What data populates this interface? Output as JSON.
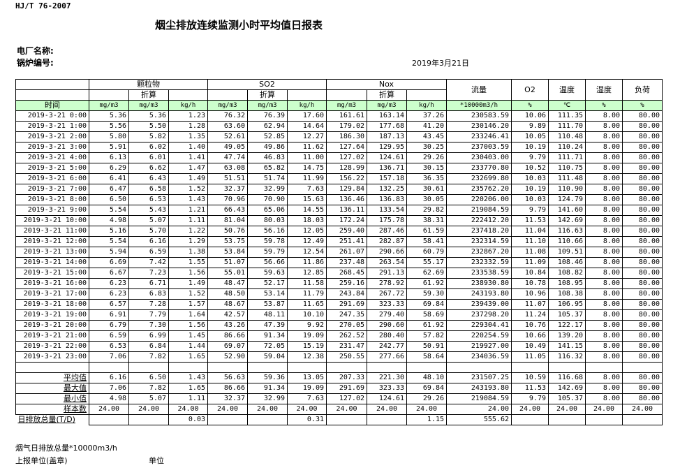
{
  "header": {
    "standard": "HJ/T  76-2007",
    "title": "烟尘排放连续监测小时平均值日报表",
    "plant_label": "电厂名称:",
    "boiler_label": "锅炉编号:",
    "date": "2019年3月21日"
  },
  "groups": {
    "pm": "颗粒物",
    "so2": "SO2",
    "nox": "Nox",
    "converted": "折算",
    "flow": "流量",
    "o2": "O2",
    "temp": "温度",
    "humidity": "湿度",
    "load": "负荷"
  },
  "units": [
    "时间",
    "mg/m3",
    "mg/m3",
    "kg/h",
    "mg/m3",
    "mg/m3",
    "kg/h",
    "mg/m3",
    "mg/m3",
    "kg/h",
    "*10000m3/h",
    "%",
    "℃",
    "%",
    "%"
  ],
  "accent_color": "#ccffcc",
  "rows": [
    [
      "2019-3-21 0:00",
      "5.36",
      "5.36",
      "1.23",
      "76.32",
      "76.39",
      "17.60",
      "161.61",
      "163.14",
      "37.26",
      "230583.59",
      "10.06",
      "111.35",
      "8.00",
      "80.00"
    ],
    [
      "2019-3-21 1:00",
      "5.56",
      "5.50",
      "1.28",
      "63.60",
      "62.94",
      "14.64",
      "179.02",
      "177.68",
      "41.20",
      "230146.20",
      "9.89",
      "111.70",
      "8.00",
      "80.00"
    ],
    [
      "2019-3-21 2:00",
      "5.80",
      "5.82",
      "1.35",
      "52.61",
      "52.85",
      "12.27",
      "186.30",
      "187.13",
      "43.45",
      "233246.41",
      "10.05",
      "110.48",
      "8.00",
      "80.00"
    ],
    [
      "2019-3-21 3:00",
      "5.91",
      "6.02",
      "1.40",
      "49.05",
      "49.86",
      "11.62",
      "127.64",
      "129.95",
      "30.25",
      "237003.59",
      "10.19",
      "110.24",
      "8.00",
      "80.00"
    ],
    [
      "2019-3-21 4:00",
      "6.13",
      "6.01",
      "1.41",
      "47.74",
      "46.83",
      "11.00",
      "127.02",
      "124.61",
      "29.26",
      "230403.00",
      "9.79",
      "111.71",
      "8.00",
      "80.00"
    ],
    [
      "2019-3-21 5:00",
      "6.29",
      "6.62",
      "1.47",
      "63.08",
      "65.82",
      "14.75",
      "128.99",
      "136.71",
      "30.15",
      "233770.80",
      "10.52",
      "110.75",
      "8.00",
      "80.00"
    ],
    [
      "2019-3-21 6:00",
      "6.41",
      "6.43",
      "1.49",
      "51.51",
      "51.74",
      "11.99",
      "156.22",
      "157.18",
      "36.35",
      "232699.80",
      "10.03",
      "111.48",
      "8.00",
      "80.00"
    ],
    [
      "2019-3-21 7:00",
      "6.47",
      "6.58",
      "1.52",
      "32.37",
      "32.99",
      "7.63",
      "129.84",
      "132.25",
      "30.61",
      "235762.20",
      "10.19",
      "110.90",
      "8.00",
      "80.00"
    ],
    [
      "2019-3-21 8:00",
      "6.50",
      "6.53",
      "1.43",
      "70.96",
      "70.90",
      "15.63",
      "136.46",
      "136.83",
      "30.05",
      "220206.00",
      "10.03",
      "124.79",
      "8.00",
      "80.00"
    ],
    [
      "2019-3-21 9:00",
      "5.54",
      "5.43",
      "1.21",
      "66.43",
      "65.06",
      "14.55",
      "136.11",
      "133.54",
      "29.82",
      "219084.59",
      "9.79",
      "141.60",
      "8.00",
      "80.00"
    ],
    [
      "2019-3-21 10:00",
      "4.98",
      "5.07",
      "1.11",
      "81.04",
      "80.03",
      "18.03",
      "172.24",
      "175.78",
      "38.31",
      "222412.20",
      "11.53",
      "142.69",
      "8.00",
      "80.00"
    ],
    [
      "2019-3-21 11:00",
      "5.16",
      "5.70",
      "1.22",
      "50.76",
      "56.16",
      "12.05",
      "259.40",
      "287.46",
      "61.59",
      "237418.20",
      "11.04",
      "116.63",
      "8.00",
      "80.00"
    ],
    [
      "2019-3-21 12:00",
      "5.54",
      "6.16",
      "1.29",
      "53.75",
      "59.78",
      "12.49",
      "251.41",
      "282.87",
      "58.41",
      "232314.59",
      "11.10",
      "110.66",
      "8.00",
      "80.00"
    ],
    [
      "2019-3-21 13:00",
      "5.94",
      "6.59",
      "1.38",
      "53.84",
      "59.79",
      "12.54",
      "261.07",
      "290.66",
      "60.79",
      "232867.20",
      "11.08",
      "109.51",
      "8.00",
      "80.00"
    ],
    [
      "2019-3-21 14:00",
      "6.69",
      "7.42",
      "1.55",
      "51.07",
      "56.66",
      "11.86",
      "237.48",
      "263.54",
      "55.17",
      "232332.59",
      "11.09",
      "108.46",
      "8.00",
      "80.00"
    ],
    [
      "2019-3-21 15:00",
      "6.67",
      "7.23",
      "1.56",
      "55.01",
      "59.63",
      "12.85",
      "268.45",
      "291.13",
      "62.69",
      "233538.59",
      "10.84",
      "108.82",
      "8.00",
      "80.00"
    ],
    [
      "2019-3-21 16:00",
      "6.23",
      "6.71",
      "1.49",
      "48.47",
      "52.17",
      "11.58",
      "259.16",
      "278.92",
      "61.92",
      "238930.80",
      "10.78",
      "108.95",
      "8.00",
      "80.00"
    ],
    [
      "2019-3-21 17:00",
      "6.23",
      "6.83",
      "1.52",
      "48.50",
      "53.14",
      "11.79",
      "243.84",
      "267.72",
      "59.30",
      "243193.80",
      "10.96",
      "108.38",
      "8.00",
      "80.00"
    ],
    [
      "2019-3-21 18:00",
      "6.57",
      "7.28",
      "1.57",
      "48.67",
      "53.87",
      "11.65",
      "291.69",
      "323.33",
      "69.84",
      "239439.00",
      "11.07",
      "106.95",
      "8.00",
      "80.00"
    ],
    [
      "2019-3-21 19:00",
      "6.91",
      "7.79",
      "1.64",
      "42.57",
      "48.11",
      "10.10",
      "247.35",
      "279.40",
      "58.69",
      "237298.20",
      "11.24",
      "105.37",
      "8.00",
      "80.00"
    ],
    [
      "2019-3-21 20:00",
      "6.79",
      "7.30",
      "1.56",
      "43.26",
      "47.39",
      "9.92",
      "270.05",
      "290.60",
      "61.92",
      "229304.41",
      "10.76",
      "122.17",
      "8.00",
      "80.00"
    ],
    [
      "2019-3-21 21:00",
      "6.59",
      "6.99",
      "1.45",
      "86.66",
      "91.34",
      "19.09",
      "262.52",
      "280.40",
      "57.82",
      "220254.59",
      "10.66",
      "139.20",
      "8.00",
      "80.00"
    ],
    [
      "2019-3-21 22:00",
      "6.53",
      "6.84",
      "1.44",
      "69.07",
      "72.05",
      "15.19",
      "231.47",
      "242.77",
      "50.91",
      "219927.00",
      "10.49",
      "141.15",
      "8.00",
      "80.00"
    ],
    [
      "2019-3-21 23:00",
      "7.06",
      "7.82",
      "1.65",
      "52.90",
      "59.04",
      "12.38",
      "250.55",
      "277.66",
      "58.64",
      "234036.59",
      "11.05",
      "116.32",
      "8.00",
      "80.00"
    ]
  ],
  "stats": [
    [
      "平均值",
      "6.16",
      "6.50",
      "1.43",
      "56.63",
      "59.36",
      "13.05",
      "207.33",
      "221.30",
      "48.10",
      "231507.25",
      "10.59",
      "116.68",
      "8.00",
      "80.00"
    ],
    [
      "最大值",
      "7.06",
      "7.82",
      "1.65",
      "86.66",
      "91.34",
      "19.09",
      "291.69",
      "323.33",
      "69.84",
      "243193.80",
      "11.53",
      "142.69",
      "8.00",
      "80.00"
    ],
    [
      "最小值",
      "4.98",
      "5.07",
      "1.11",
      "32.37",
      "32.99",
      "7.63",
      "127.02",
      "124.61",
      "29.26",
      "219084.59",
      "9.79",
      "105.37",
      "8.00",
      "80.00"
    ],
    [
      "样本数",
      "24.00",
      "24.00",
      "24.00",
      "24.00",
      "24.00",
      "24.00",
      "24.00",
      "24.00",
      "24.00",
      "24.00",
      "24.00",
      "24.00",
      "24.00",
      "24.00"
    ]
  ],
  "total": [
    "日排放总量(T/D)",
    "",
    "",
    "0.03",
    "",
    "",
    "0.31",
    "",
    "",
    "1.15",
    "555.62",
    "",
    "",
    "",
    ""
  ],
  "footer": {
    "flue_total": "烟气日排放总量*10000m3/h",
    "reporter": "上报单位(盖章)",
    "unit": "单位"
  }
}
